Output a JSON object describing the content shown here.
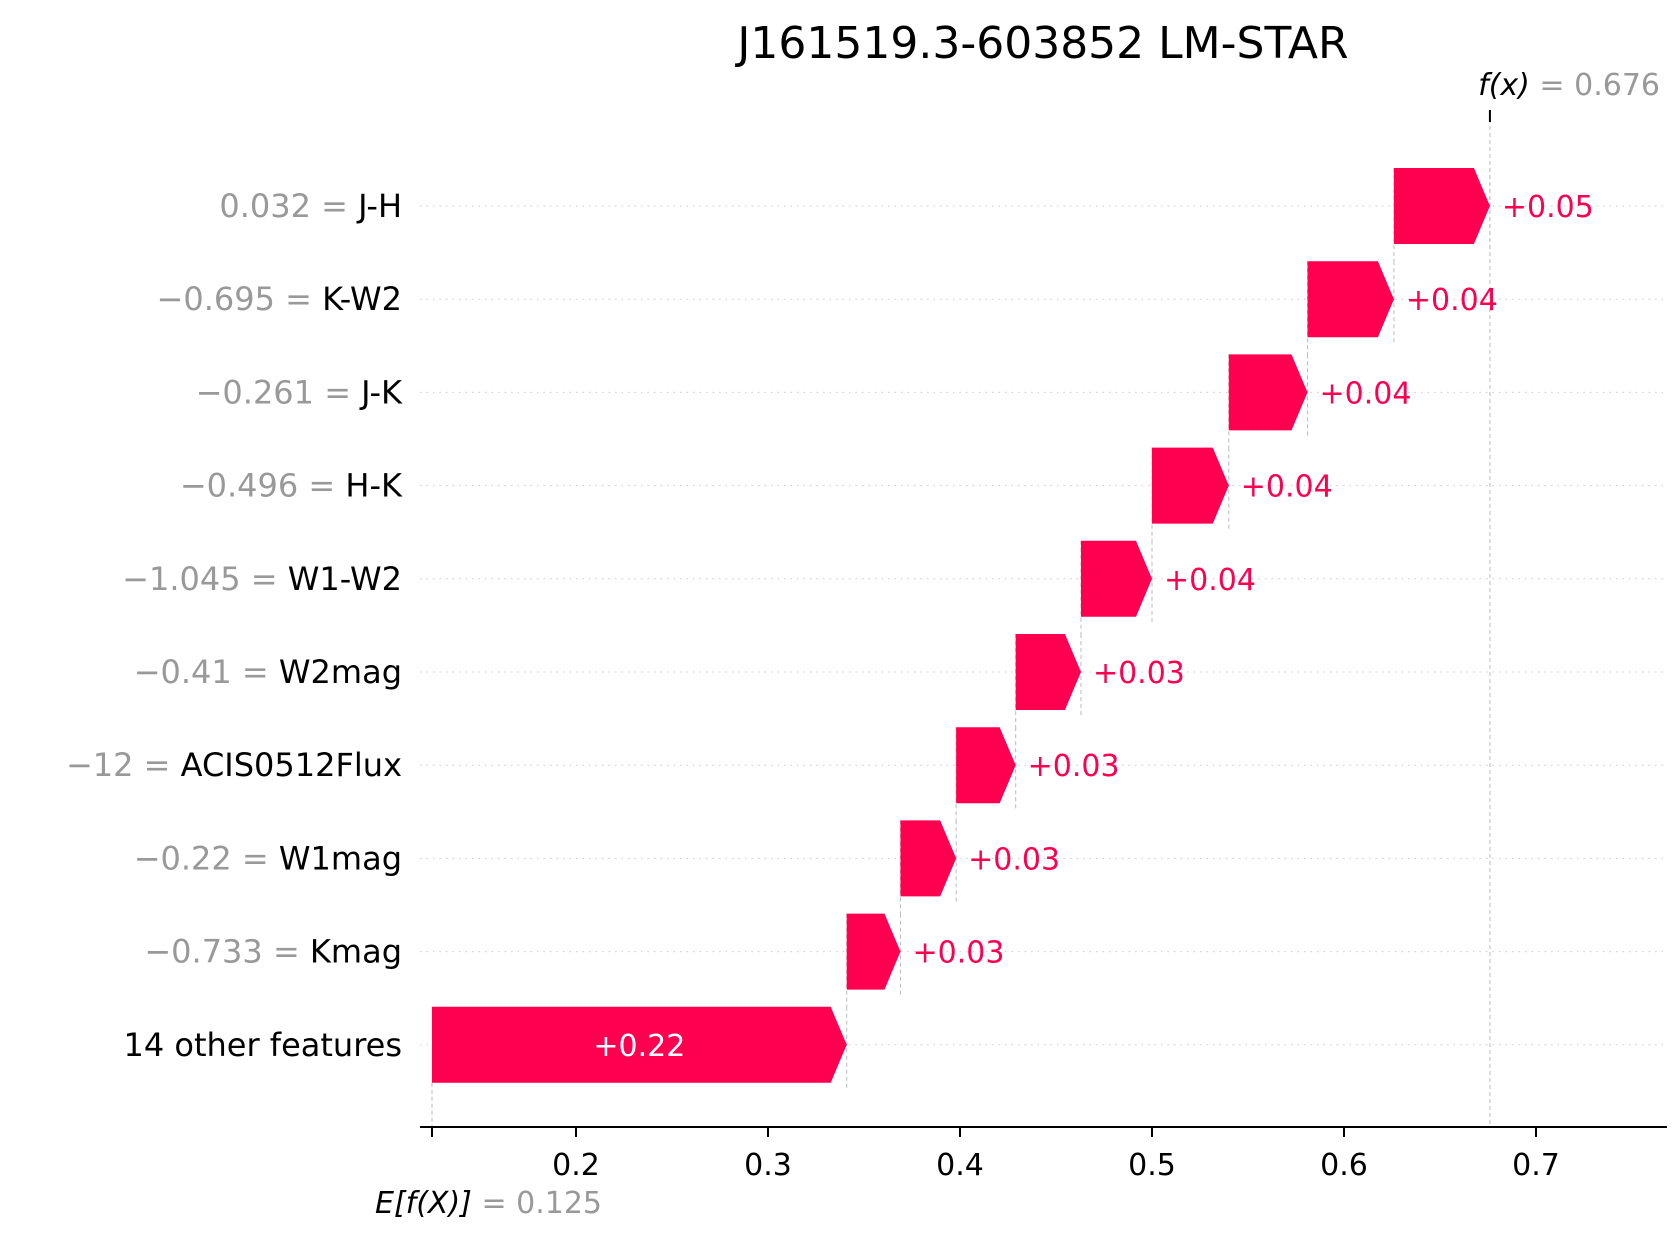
{
  "chart_data": {
    "type": "bar",
    "subtype": "waterfall",
    "title": "J161519.3-603852 LM-STAR",
    "fx_label": "f(x)",
    "fx_value": "0.676",
    "fx": 0.676,
    "base_label": "E[f(X)]",
    "base_value_text": "0.125",
    "base_value": 0.125,
    "xlim": [
      0.1,
      0.77
    ],
    "xticks": [
      "0.2",
      "0.3",
      "0.4",
      "0.5",
      "0.6",
      "0.7"
    ],
    "grid": "horizontal dotted",
    "features": [
      {
        "value": "0.032",
        "name": "J-H",
        "contribution": 0.05,
        "label": "+0.05"
      },
      {
        "value": "−0.695",
        "name": "K-W2",
        "contribution": 0.045,
        "label": "+0.04"
      },
      {
        "value": "−0.261",
        "name": "J-K",
        "contribution": 0.041,
        "label": "+0.04"
      },
      {
        "value": "−0.496",
        "name": "H-K",
        "contribution": 0.04,
        "label": "+0.04"
      },
      {
        "value": "−1.045",
        "name": "W1-W2",
        "contribution": 0.037,
        "label": "+0.04"
      },
      {
        "value": "−0.41",
        "name": "W2mag",
        "contribution": 0.034,
        "label": "+0.03"
      },
      {
        "value": "−12",
        "name": "ACIS0512Flux",
        "contribution": 0.031,
        "label": "+0.03"
      },
      {
        "value": "−0.22",
        "name": "W1mag",
        "contribution": 0.029,
        "label": "+0.03"
      },
      {
        "value": "−0.733",
        "name": "Kmag",
        "contribution": 0.028,
        "label": "+0.03"
      },
      {
        "value": "",
        "name": "14 other features",
        "contribution": 0.216,
        "label": "+0.22"
      }
    ],
    "colors": {
      "positive": "#ff0051",
      "muted": "#999999",
      "axis": "#000000"
    }
  }
}
